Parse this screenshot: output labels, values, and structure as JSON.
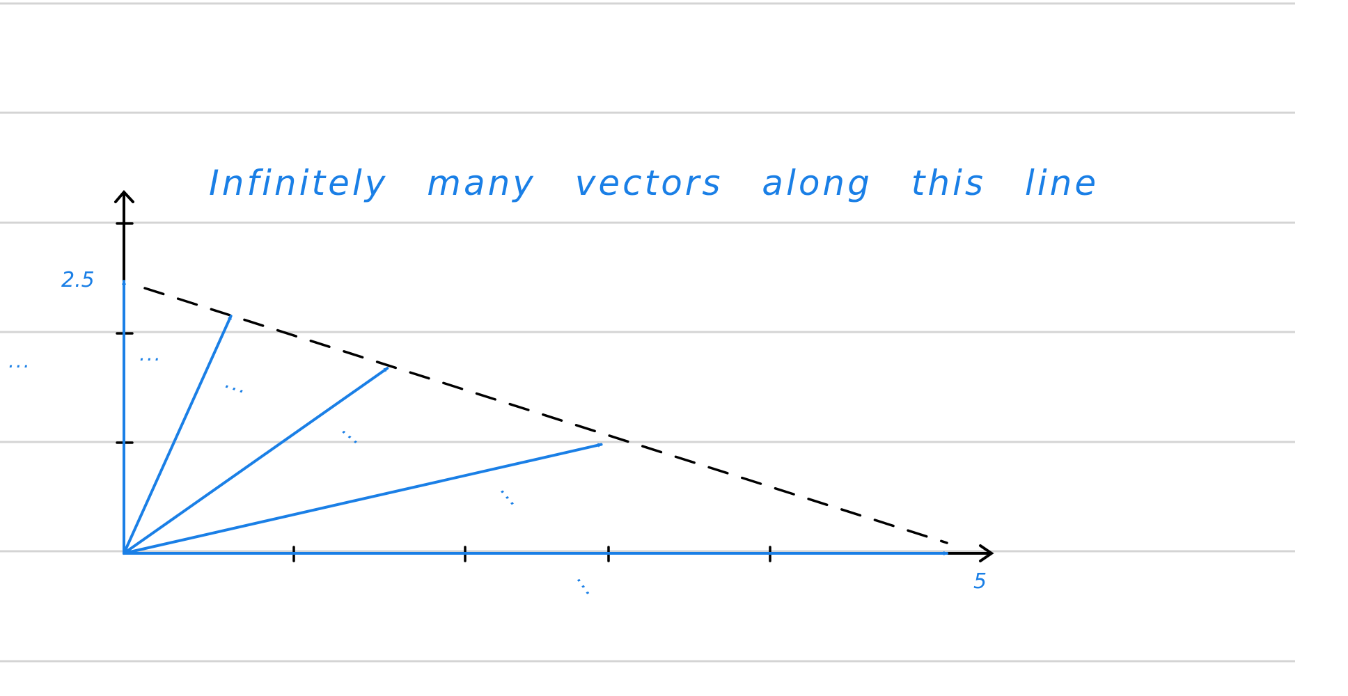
{
  "annotation": {
    "title": "Infinitely many vectors along this line",
    "y_label": "2.5",
    "x_label": "5",
    "ellipsis": "..."
  },
  "colors": {
    "ink_blue": "#1a7fe6",
    "ink_black": "#000000",
    "ruled_line": "#d4d4d4",
    "paper": "#ffffff"
  },
  "diagram": {
    "x_range": [
      0,
      5
    ],
    "y_range": [
      0,
      2.5
    ],
    "x_ticks": [
      1,
      2,
      3,
      4
    ],
    "y_ticks": [
      1,
      2,
      3
    ],
    "dashed_line": {
      "from": [
        0,
        2.5
      ],
      "to": [
        5,
        0
      ]
    },
    "vectors": [
      {
        "to": [
          0,
          2.5
        ]
      },
      {
        "to": [
          0.65,
          2.18
        ]
      },
      {
        "to": [
          1.6,
          1.7
        ]
      },
      {
        "to": [
          2.9,
          1.0
        ]
      },
      {
        "to": [
          5,
          0
        ]
      }
    ]
  }
}
